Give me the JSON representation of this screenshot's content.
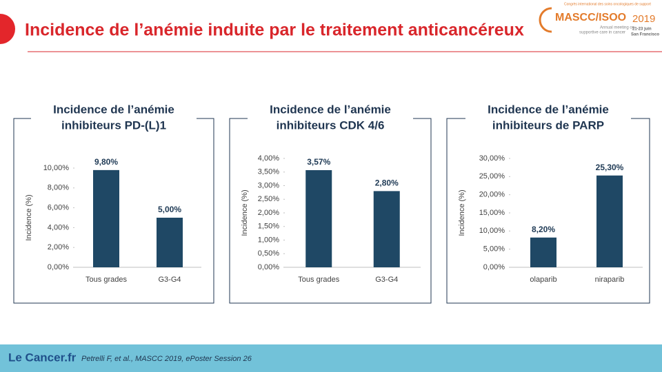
{
  "header": {
    "title": "Incidence de l’anémie induite par le traitement anticancéreux",
    "logo": {
      "top": "Congrès international des soins oncologiques de support",
      "name": "MASCC/ISOO",
      "year": "2019",
      "sub1": "Annual meeting on",
      "sub2": "supportive care in cancer",
      "dates": "21-23 juin",
      "city": "San Francisco"
    }
  },
  "chart_data": [
    {
      "type": "bar",
      "title": [
        "Incidence de l’anémie",
        "inhibiteurs PD-(L)1"
      ],
      "y_label": "Incidence (%)",
      "categories": [
        "Tous grades",
        "G3-G4"
      ],
      "values": [
        9.8,
        5.0
      ],
      "value_labels": [
        "9,80%",
        "5,00%"
      ],
      "color": "#1f4865",
      "ylim": [
        0,
        10
      ],
      "yticks": [
        {
          "value": 0,
          "label": "0,00%"
        },
        {
          "value": 2,
          "label": "2,00%"
        },
        {
          "value": 4,
          "label": "4,00%"
        },
        {
          "value": 6,
          "label": "6,00%"
        },
        {
          "value": 8,
          "label": "8,00%"
        },
        {
          "value": 10,
          "label": "10,00%"
        }
      ]
    },
    {
      "type": "bar",
      "title": [
        "Incidence de l’anémie",
        "inhibiteurs  CDK 4/6"
      ],
      "y_label": "Incidence (%)",
      "categories": [
        "Tous grades",
        "G3-G4"
      ],
      "values": [
        3.57,
        2.8
      ],
      "value_labels": [
        "3,57%",
        "2,80%"
      ],
      "color": "#1f4865",
      "ylim": [
        0,
        4
      ],
      "yticks": [
        {
          "value": 0,
          "label": "0,00%"
        },
        {
          "value": 0.5,
          "label": "0,50%"
        },
        {
          "value": 1,
          "label": "1,00%"
        },
        {
          "value": 1.5,
          "label": "1,50%"
        },
        {
          "value": 2,
          "label": "2,00%"
        },
        {
          "value": 2.5,
          "label": "2,50%"
        },
        {
          "value": 3,
          "label": "3,00%"
        },
        {
          "value": 3.5,
          "label": "3,50%"
        },
        {
          "value": 4,
          "label": "4,00%"
        }
      ]
    },
    {
      "type": "bar",
      "title": [
        "Incidence de l’anémie",
        "inhibiteurs  de PARP"
      ],
      "y_label": "Incidence (%)",
      "categories": [
        "olaparib",
        "niraparib"
      ],
      "values": [
        8.2,
        25.3
      ],
      "value_labels": [
        "8,20%",
        "25,30%"
      ],
      "color": "#1f4865",
      "ylim": [
        0,
        30
      ],
      "yticks": [
        {
          "value": 0,
          "label": "0,00%"
        },
        {
          "value": 5,
          "label": "5,00%"
        },
        {
          "value": 10,
          "label": "10,00%"
        },
        {
          "value": 15,
          "label": "15,00%"
        },
        {
          "value": 20,
          "label": "20,00%"
        },
        {
          "value": 25,
          "label": "25,00%"
        },
        {
          "value": 30,
          "label": "30,00%"
        }
      ]
    }
  ],
  "footer": {
    "brand": "Le Cancer.fr",
    "citation": "Petrelli F, et al., MASCC 2019, ePoster Session 26"
  }
}
